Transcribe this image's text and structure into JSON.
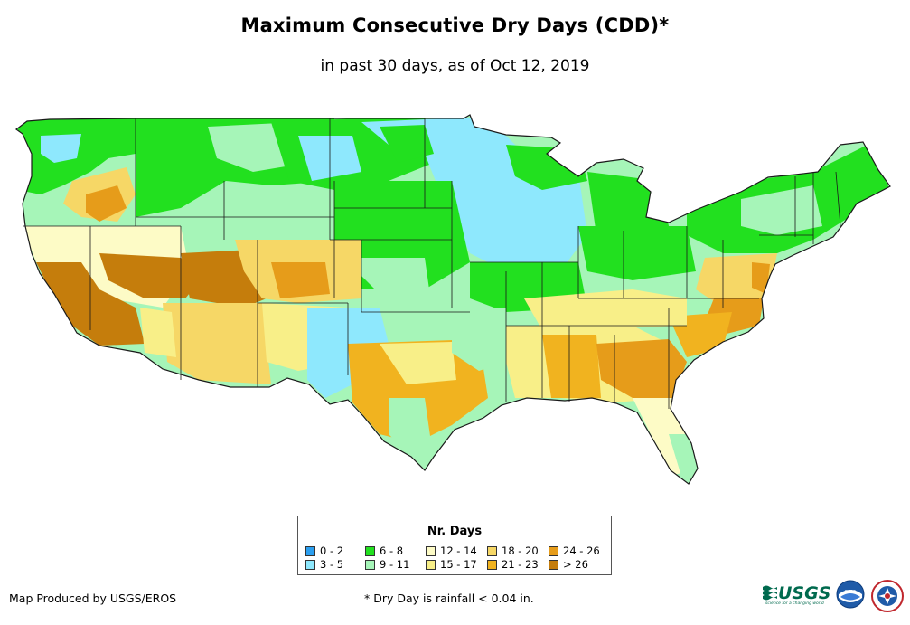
{
  "title": "Maximum Consecutive Dry Days (CDD)*",
  "subtitle": "in past 30 days, as of Oct 12, 2019",
  "legend": {
    "title": "Nr. Days",
    "items": [
      {
        "label": "0 - 2",
        "color": "#2b9ff0"
      },
      {
        "label": "3 - 5",
        "color": "#8ee8fd"
      },
      {
        "label": "6 - 8",
        "color": "#22e01f"
      },
      {
        "label": "9 - 11",
        "color": "#a6f5b8"
      },
      {
        "label": "12 - 14",
        "color": "#fdfbc6"
      },
      {
        "label": "15 - 17",
        "color": "#f8ef88"
      },
      {
        "label": "18 - 20",
        "color": "#f6d766"
      },
      {
        "label": "21 - 23",
        "color": "#f1b31f"
      },
      {
        "label": "24 - 26",
        "color": "#e69c1a"
      },
      {
        "label": "> 26",
        "color": "#c57d0c"
      }
    ]
  },
  "credit": "Map Produced by USGS/EROS",
  "footnote": "* Dry Day is rainfall < 0.04 in.",
  "logos": {
    "usgs": "USGS",
    "usgs_tagline": "science for a changing world",
    "noaa": "noaa"
  }
}
